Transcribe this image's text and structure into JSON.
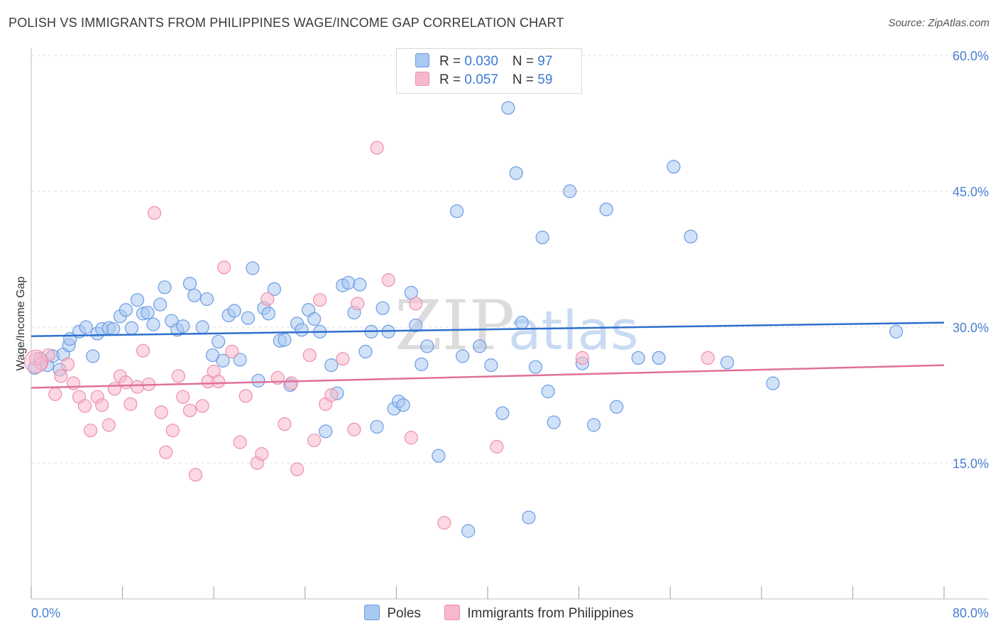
{
  "header": {
    "title": "POLISH VS IMMIGRANTS FROM PHILIPPINES WAGE/INCOME GAP CORRELATION CHART",
    "source": "Source: ZipAtlas.com"
  },
  "watermark": {
    "zip": "ZIP",
    "atlas": "atlas"
  },
  "legend": {
    "rows": [
      {
        "r_label": "R = ",
        "r_value": "0.030",
        "n_label": "N = ",
        "n_value": "97",
        "color": "#a9c8f2"
      },
      {
        "r_label": "R = ",
        "r_value": "0.057",
        "n_label": "N = ",
        "n_value": "59",
        "color": "#f7b8cb"
      }
    ]
  },
  "chart_data": {
    "type": "scatter",
    "ylabel": "Wage/Income Gap",
    "xlabel": "",
    "xlim": [
      0,
      80
    ],
    "ylim": [
      0,
      63
    ],
    "x_tick_labels": [
      "0.0%",
      "80.0%"
    ],
    "y_ticks": [
      {
        "value": 15,
        "label": "15.0%"
      },
      {
        "value": 30,
        "label": "30.0%"
      },
      {
        "value": 45,
        "label": "45.0%"
      },
      {
        "value": 60,
        "label": "60.0%"
      }
    ],
    "grid": true,
    "legend_position": "top-center",
    "series": [
      {
        "name": "Poles",
        "color": "#6b9ce3",
        "fill": "#a9c8f2",
        "line_color": "#2e6fce",
        "trend": {
          "x": [
            0,
            80
          ],
          "y": [
            29.0,
            30.5
          ]
        },
        "points": [
          [
            0.3,
            25.5
          ],
          [
            0.8,
            26.5
          ],
          [
            1.4,
            25.8
          ],
          [
            1.9,
            26.8
          ],
          [
            2.5,
            25.3
          ],
          [
            2.8,
            27.0
          ],
          [
            3.3,
            28.0
          ],
          [
            3.4,
            28.7
          ],
          [
            4.2,
            29.5
          ],
          [
            4.8,
            30.0
          ],
          [
            5.4,
            26.8
          ],
          [
            5.8,
            29.3
          ],
          [
            6.2,
            29.8
          ],
          [
            6.8,
            29.9
          ],
          [
            7.2,
            29.8
          ],
          [
            7.8,
            31.2
          ],
          [
            8.3,
            31.9
          ],
          [
            8.8,
            29.9
          ],
          [
            9.3,
            33.0
          ],
          [
            9.8,
            31.5
          ],
          [
            10.2,
            31.6
          ],
          [
            10.7,
            30.3
          ],
          [
            11.3,
            32.5
          ],
          [
            11.7,
            34.4
          ],
          [
            12.3,
            30.7
          ],
          [
            12.8,
            29.7
          ],
          [
            13.3,
            30.1
          ],
          [
            13.9,
            34.8
          ],
          [
            14.3,
            33.5
          ],
          [
            15.0,
            30.0
          ],
          [
            15.4,
            33.1
          ],
          [
            15.9,
            26.9
          ],
          [
            16.4,
            28.4
          ],
          [
            16.8,
            26.3
          ],
          [
            17.3,
            31.3
          ],
          [
            17.8,
            31.8
          ],
          [
            18.3,
            26.4
          ],
          [
            19.0,
            31.0
          ],
          [
            19.4,
            36.5
          ],
          [
            19.9,
            24.1
          ],
          [
            20.4,
            32.1
          ],
          [
            20.8,
            31.5
          ],
          [
            21.3,
            34.2
          ],
          [
            21.8,
            28.5
          ],
          [
            22.2,
            28.6
          ],
          [
            22.7,
            23.6
          ],
          [
            23.3,
            30.4
          ],
          [
            23.7,
            29.7
          ],
          [
            24.3,
            31.9
          ],
          [
            24.8,
            30.9
          ],
          [
            25.3,
            29.5
          ],
          [
            25.8,
            18.5
          ],
          [
            26.3,
            25.8
          ],
          [
            26.8,
            22.7
          ],
          [
            27.3,
            34.6
          ],
          [
            27.8,
            34.9
          ],
          [
            28.3,
            31.6
          ],
          [
            28.8,
            34.7
          ],
          [
            29.3,
            27.3
          ],
          [
            29.8,
            29.5
          ],
          [
            30.3,
            19.0
          ],
          [
            30.8,
            32.1
          ],
          [
            31.3,
            29.5
          ],
          [
            31.8,
            21.0
          ],
          [
            32.2,
            21.8
          ],
          [
            32.6,
            21.4
          ],
          [
            33.3,
            33.8
          ],
          [
            33.7,
            30.2
          ],
          [
            34.2,
            25.9
          ],
          [
            34.7,
            27.9
          ],
          [
            35.7,
            15.8
          ],
          [
            37.3,
            42.8
          ],
          [
            37.8,
            26.8
          ],
          [
            38.3,
            7.5
          ],
          [
            39.3,
            27.9
          ],
          [
            40.3,
            25.8
          ],
          [
            41.3,
            20.5
          ],
          [
            41.8,
            54.2
          ],
          [
            42.5,
            47.0
          ],
          [
            43.0,
            30.5
          ],
          [
            43.6,
            9.0
          ],
          [
            44.2,
            25.6
          ],
          [
            44.8,
            39.9
          ],
          [
            45.3,
            22.9
          ],
          [
            45.8,
            19.5
          ],
          [
            47.2,
            45.0
          ],
          [
            48.3,
            26.0
          ],
          [
            49.3,
            19.2
          ],
          [
            50.4,
            43.0
          ],
          [
            51.3,
            21.2
          ],
          [
            53.2,
            26.6
          ],
          [
            55.0,
            26.6
          ],
          [
            56.3,
            47.7
          ],
          [
            57.8,
            40.0
          ],
          [
            61.0,
            26.1
          ],
          [
            65.0,
            23.8
          ],
          [
            75.8,
            29.5
          ]
        ]
      },
      {
        "name": "Immigrants from Philippines",
        "color": "#ee8fad",
        "fill": "#f7b8cb",
        "line_color": "#e0709a",
        "trend": {
          "x": [
            0,
            80
          ],
          "y": [
            23.3,
            25.8
          ]
        },
        "points": [
          [
            0.4,
            26.5
          ],
          [
            0.9,
            26.0
          ],
          [
            1.5,
            26.9
          ],
          [
            2.1,
            22.6
          ],
          [
            2.6,
            24.6
          ],
          [
            3.2,
            25.9
          ],
          [
            3.7,
            23.8
          ],
          [
            4.2,
            22.3
          ],
          [
            4.7,
            21.3
          ],
          [
            5.2,
            18.6
          ],
          [
            5.8,
            22.3
          ],
          [
            6.2,
            21.4
          ],
          [
            6.8,
            19.2
          ],
          [
            7.3,
            23.2
          ],
          [
            7.8,
            24.6
          ],
          [
            8.3,
            23.9
          ],
          [
            8.7,
            21.5
          ],
          [
            9.3,
            23.4
          ],
          [
            9.8,
            27.4
          ],
          [
            10.3,
            23.7
          ],
          [
            10.8,
            42.6
          ],
          [
            11.4,
            20.6
          ],
          [
            11.8,
            16.2
          ],
          [
            12.4,
            18.6
          ],
          [
            12.9,
            24.6
          ],
          [
            13.3,
            22.3
          ],
          [
            13.9,
            20.8
          ],
          [
            14.4,
            13.7
          ],
          [
            15.0,
            21.3
          ],
          [
            15.5,
            24.0
          ],
          [
            16.0,
            25.1
          ],
          [
            16.4,
            24.0
          ],
          [
            16.9,
            36.6
          ],
          [
            17.6,
            27.3
          ],
          [
            18.3,
            17.3
          ],
          [
            18.8,
            22.4
          ],
          [
            19.8,
            15.0
          ],
          [
            20.2,
            16.0
          ],
          [
            20.7,
            33.1
          ],
          [
            21.6,
            24.4
          ],
          [
            22.2,
            19.3
          ],
          [
            22.8,
            23.8
          ],
          [
            23.3,
            14.3
          ],
          [
            24.4,
            26.9
          ],
          [
            24.8,
            17.5
          ],
          [
            25.3,
            33.0
          ],
          [
            25.8,
            21.5
          ],
          [
            26.3,
            22.5
          ],
          [
            27.3,
            26.5
          ],
          [
            28.3,
            18.7
          ],
          [
            28.6,
            32.6
          ],
          [
            30.3,
            49.8
          ],
          [
            31.3,
            35.2
          ],
          [
            33.3,
            17.8
          ],
          [
            33.7,
            32.6
          ],
          [
            36.2,
            8.4
          ],
          [
            40.8,
            16.8
          ],
          [
            48.3,
            26.6
          ],
          [
            59.3,
            26.6
          ]
        ]
      }
    ]
  }
}
